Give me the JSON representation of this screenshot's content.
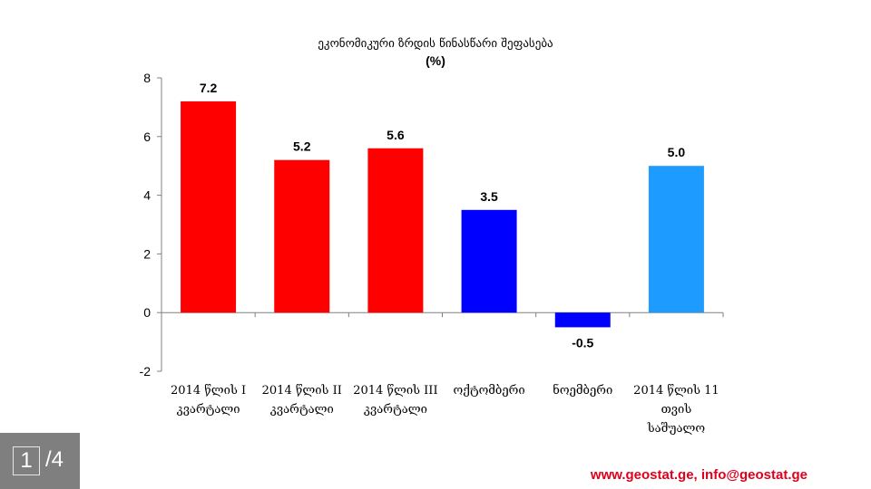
{
  "chart_data": {
    "type": "bar",
    "title": "ეკონომიკური ზრდის წინასწარი შეფასება",
    "subtitle": "(%)",
    "categories": [
      [
        "2014 წლის I",
        "კვარტალი"
      ],
      [
        "2014 წლის II",
        "კვარტალი"
      ],
      [
        "2014 წლის III",
        "კვარტალი"
      ],
      [
        "ოქტომბერი"
      ],
      [
        "ნოემბერი"
      ],
      [
        "2014 წლის 11",
        "თვის",
        "საშუალო"
      ]
    ],
    "values": [
      7.2,
      5.2,
      5.6,
      3.5,
      -0.5,
      5.0
    ],
    "value_labels": [
      "7.2",
      "5.2",
      "5.6",
      "3.5",
      "-0.5",
      "5.0"
    ],
    "bar_colors": [
      "#ff0000",
      "#ff0000",
      "#ff0000",
      "#0000ff",
      "#0000ff",
      "#1e9bff"
    ],
    "ylim": [
      -2,
      8
    ],
    "yticks": [
      -2,
      0,
      2,
      4,
      6,
      8
    ],
    "ytick_labels": [
      "-2",
      "0",
      "2",
      "4",
      "6",
      "8"
    ],
    "xlabel": "",
    "ylabel": "",
    "grid": false,
    "legend": "none"
  },
  "pager": {
    "current": "1",
    "total": "/4"
  },
  "footer": {
    "contact": "www.geostat.ge, info@geostat.ge"
  }
}
